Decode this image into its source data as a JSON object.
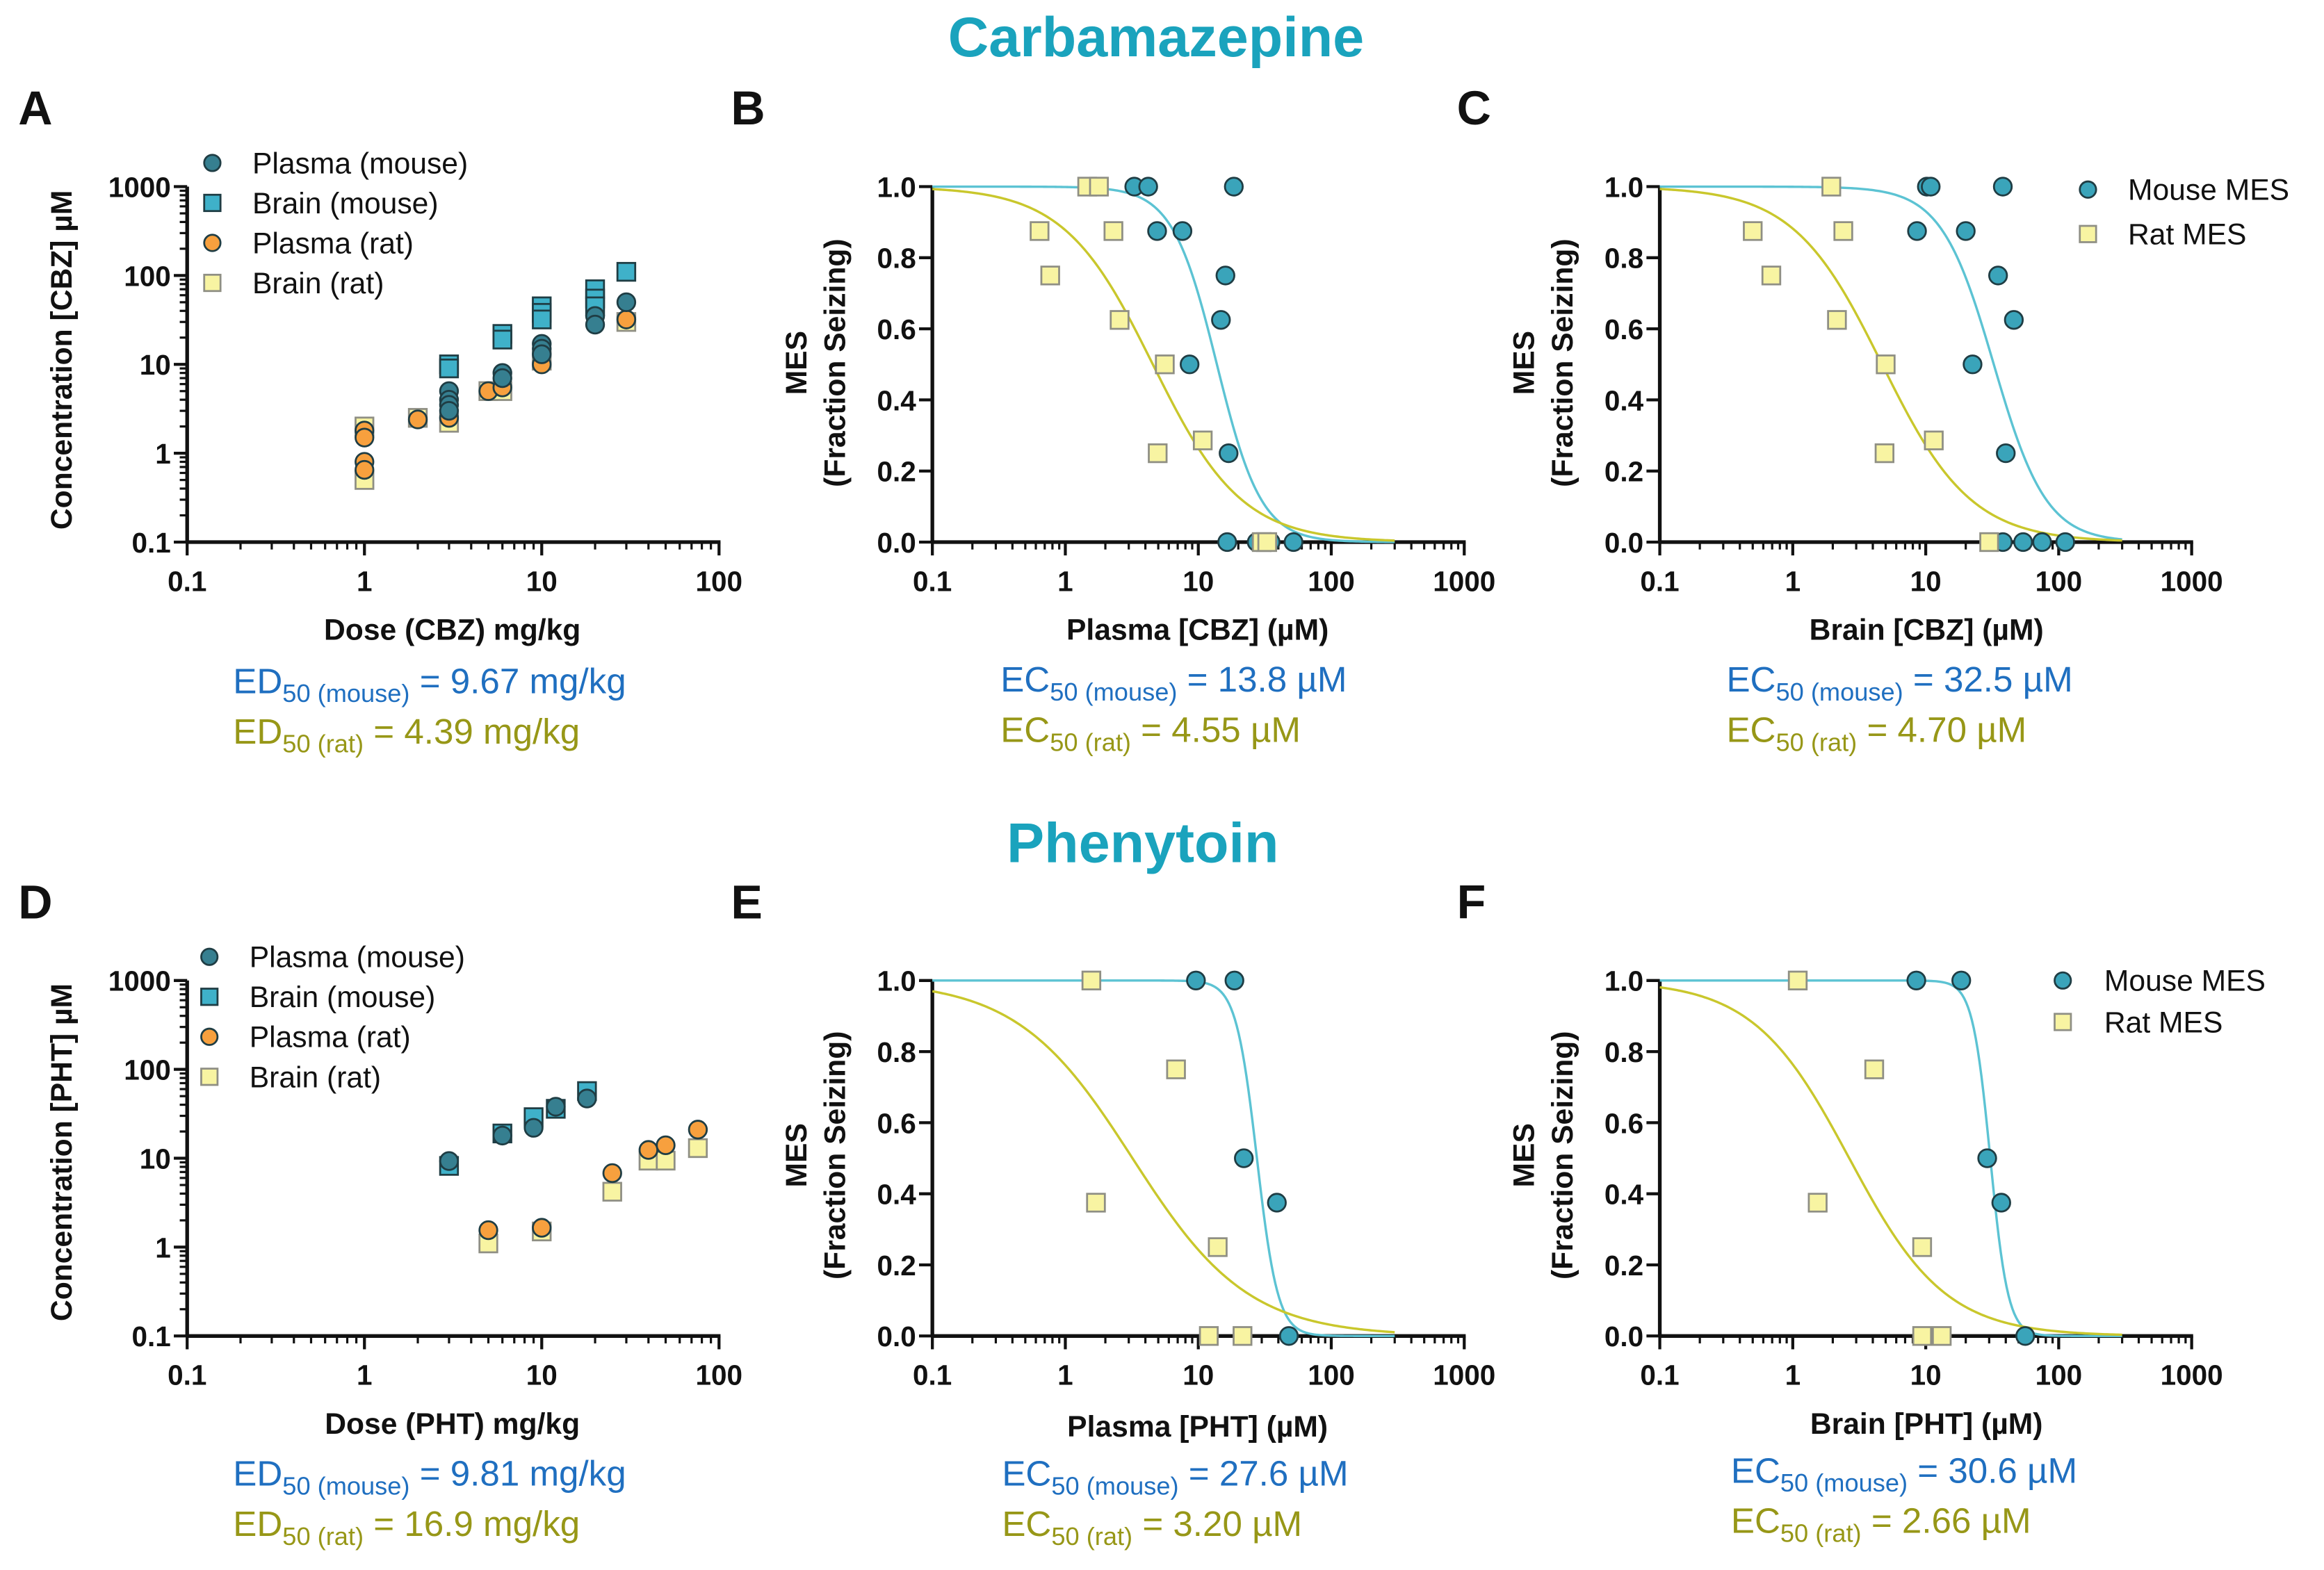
{
  "titles": {
    "top": "Carbamazepine",
    "bottom": "Phenytoin"
  },
  "colors": {
    "title": "#1aa3bd",
    "plasma_mouse": "#367f90",
    "brain_mouse": "#3fb1c9",
    "plasma_rat": "#f7a03e",
    "brain_rat": "#f8f4a2",
    "mouse_mes": "#3aa4ba",
    "rat_mes": "#f8f4a2",
    "mouse_curve": "#5cc3d3",
    "rat_curve": "#c9c72c",
    "mouse_text": "#1f6fc0",
    "rat_text": "#979717"
  },
  "chart_data": [
    {
      "panel": "A",
      "type": "scatter",
      "xlabel": "Dose (CBZ) mg/kg",
      "ylabel": [
        "Concentration [CBZ] µM"
      ],
      "xscale": "log",
      "yscale": "log",
      "xlim": [
        0.1,
        100
      ],
      "ylim": [
        0.1,
        1000
      ],
      "xticks": [
        "0.1",
        "1",
        "10",
        "100"
      ],
      "yticks": [
        "0.1",
        "1",
        "10",
        "100",
        "1000"
      ],
      "legend_placement": "top-left",
      "grid": false,
      "series": [
        {
          "name": "Plasma (mouse)",
          "marker": "circle",
          "color_key": "plasma_mouse",
          "points": [
            [
              3,
              5
            ],
            [
              3,
              4
            ],
            [
              3,
              3.5
            ],
            [
              3,
              3
            ],
            [
              6,
              8
            ],
            [
              6,
              7
            ],
            [
              10,
              17
            ],
            [
              10,
              15
            ],
            [
              10,
              13
            ],
            [
              20,
              35
            ],
            [
              20,
              28
            ],
            [
              30,
              50
            ]
          ]
        },
        {
          "name": "Brain (mouse)",
          "marker": "square",
          "color_key": "brain_mouse",
          "points": [
            [
              3,
              10
            ],
            [
              3,
              9
            ],
            [
              6,
              22
            ],
            [
              6,
              19
            ],
            [
              10,
              45
            ],
            [
              10,
              38
            ],
            [
              10,
              32
            ],
            [
              20,
              70
            ],
            [
              20,
              55
            ],
            [
              20,
              45
            ],
            [
              30,
              110
            ]
          ]
        },
        {
          "name": "Plasma (rat)",
          "marker": "circle",
          "color_key": "plasma_rat",
          "points": [
            [
              1,
              1.8
            ],
            [
              1,
              1.5
            ],
            [
              1,
              0.8
            ],
            [
              1,
              0.65
            ],
            [
              2,
              2.4
            ],
            [
              3,
              2.5
            ],
            [
              5,
              5
            ],
            [
              6,
              5.5
            ],
            [
              10,
              10
            ],
            [
              30,
              32
            ]
          ]
        },
        {
          "name": "Brain (rat)",
          "marker": "square",
          "color_key": "brain_rat",
          "points": [
            [
              1,
              2
            ],
            [
              1,
              0.5
            ],
            [
              2,
              2.5
            ],
            [
              3,
              2.2
            ],
            [
              5,
              5
            ],
            [
              6,
              5
            ],
            [
              10,
              11
            ],
            [
              30,
              30
            ]
          ]
        }
      ],
      "annotations": [
        {
          "main": "ED",
          "sub": "50 (mouse)",
          "rest": " = 9.67 mg/kg",
          "color_key": "mouse_text"
        },
        {
          "main": "ED",
          "sub": "50 (rat)",
          "rest": " = 4.39 mg/kg",
          "color_key": "rat_text"
        }
      ]
    },
    {
      "panel": "B",
      "type": "scatter",
      "xlabel": "Plasma [CBZ] (µM)",
      "ylabel": [
        "MES",
        "(Fraction Seizing)"
      ],
      "xscale": "log",
      "yscale": "linear",
      "xlim": [
        0.1,
        1000
      ],
      "ylim": [
        0,
        1
      ],
      "xticks": [
        "0.1",
        "1",
        "10",
        "100",
        "1000"
      ],
      "yticks": [
        "0.0",
        "0.2",
        "0.4",
        "0.6",
        "0.8",
        "1.0"
      ],
      "grid": false,
      "series": [
        {
          "marker": "circle",
          "color_key": "mouse_mes",
          "curve_key": "mouse_curve",
          "fit": {
            "ec50": 13.8,
            "hill_slope": 2.6
          },
          "points": [
            [
              3.3,
              1
            ],
            [
              4.2,
              1
            ],
            [
              18.5,
              1
            ],
            [
              4.9,
              0.875
            ],
            [
              7.6,
              0.875
            ],
            [
              16,
              0.75
            ],
            [
              14.8,
              0.625
            ],
            [
              8.6,
              0.5
            ],
            [
              16.9,
              0.25
            ],
            [
              16.5,
              0
            ],
            [
              27.5,
              0
            ],
            [
              35,
              0
            ],
            [
              52,
              0
            ]
          ]
        },
        {
          "marker": "square",
          "color_key": "rat_mes",
          "curve_key": "rat_curve",
          "fit": {
            "ec50": 4.55,
            "hill_slope": 1.3
          },
          "points": [
            [
              1.46,
              1
            ],
            [
              1.79,
              1
            ],
            [
              0.64,
              0.875
            ],
            [
              2.3,
              0.875
            ],
            [
              0.77,
              0.75
            ],
            [
              2.56,
              0.625
            ],
            [
              5.6,
              0.5
            ],
            [
              4.95,
              0.25
            ],
            [
              10.8,
              0.286
            ],
            [
              30,
              0
            ],
            [
              33,
              0
            ]
          ]
        }
      ],
      "annotations": [
        {
          "main": "EC",
          "sub": "50 (mouse)",
          "rest": " = 13.8 µM",
          "color_key": "mouse_text"
        },
        {
          "main": "EC",
          "sub": "50 (rat)",
          "rest": " = 4.55 µM",
          "color_key": "rat_text"
        }
      ]
    },
    {
      "panel": "C",
      "type": "scatter",
      "xlabel": "Brain [CBZ] (µM)",
      "ylabel": [
        "MES",
        "(Fraction Seizing)"
      ],
      "xscale": "log",
      "yscale": "linear",
      "xlim": [
        0.1,
        1000
      ],
      "ylim": [
        0,
        1
      ],
      "xticks": [
        "0.1",
        "1",
        "10",
        "100",
        "1000"
      ],
      "yticks": [
        "0.0",
        "0.2",
        "0.4",
        "0.6",
        "0.8",
        "1.0"
      ],
      "legend_placement": "top-right",
      "grid": false,
      "series": [
        {
          "name": "Mouse MES",
          "marker": "circle",
          "color_key": "mouse_mes",
          "curve_key": "mouse_curve",
          "fit": {
            "ec50": 32.5,
            "hill_slope": 2.2
          },
          "points": [
            [
              10.2,
              1
            ],
            [
              10.9,
              1
            ],
            [
              38,
              1
            ],
            [
              8.6,
              0.875
            ],
            [
              20,
              0.875
            ],
            [
              35,
              0.75
            ],
            [
              46,
              0.625
            ],
            [
              22.5,
              0.5
            ],
            [
              40,
              0.25
            ],
            [
              38,
              0
            ],
            [
              54,
              0
            ],
            [
              75,
              0
            ],
            [
              112,
              0
            ]
          ]
        },
        {
          "name": "Rat MES",
          "marker": "square",
          "color_key": "rat_mes",
          "curve_key": "rat_curve",
          "fit": {
            "ec50": 4.7,
            "hill_slope": 1.3
          },
          "points": [
            [
              1.95,
              1
            ],
            [
              0.5,
              0.875
            ],
            [
              2.4,
              0.875
            ],
            [
              0.69,
              0.75
            ],
            [
              2.15,
              0.625
            ],
            [
              5,
              0.5
            ],
            [
              4.9,
              0.25
            ],
            [
              11.5,
              0.286
            ],
            [
              30,
              0
            ]
          ]
        }
      ],
      "annotations": [
        {
          "main": "EC",
          "sub": "50 (mouse)",
          "rest": " = 32.5 µM",
          "color_key": "mouse_text"
        },
        {
          "main": "EC",
          "sub": "50 (rat)",
          "rest": " = 4.70 µM",
          "color_key": "rat_text"
        }
      ]
    },
    {
      "panel": "D",
      "type": "scatter",
      "xlabel": "Dose (PHT) mg/kg",
      "ylabel": [
        "Concentration [PHT] µM"
      ],
      "xscale": "log",
      "yscale": "log",
      "xlim": [
        0.1,
        100
      ],
      "ylim": [
        0.1,
        1000
      ],
      "xticks": [
        "0.1",
        "1",
        "10",
        "100"
      ],
      "yticks": [
        "0.1",
        "1",
        "10",
        "100",
        "1000"
      ],
      "legend_placement": "top-left",
      "grid": false,
      "series": [
        {
          "name": "Plasma (mouse)",
          "marker": "circle",
          "color_key": "plasma_mouse",
          "points": [
            [
              3,
              9.3
            ],
            [
              6,
              18
            ],
            [
              9,
              22
            ],
            [
              12,
              38
            ],
            [
              18,
              47
            ]
          ]
        },
        {
          "name": "Brain (mouse)",
          "marker": "square",
          "color_key": "brain_mouse",
          "points": [
            [
              3,
              8.2
            ],
            [
              6,
              19
            ],
            [
              9,
              29
            ],
            [
              12,
              36
            ],
            [
              18,
              57
            ]
          ]
        },
        {
          "name": "Plasma (rat)",
          "marker": "circle",
          "color_key": "plasma_rat",
          "points": [
            [
              5,
              1.55
            ],
            [
              10,
              1.65
            ],
            [
              25,
              6.8
            ],
            [
              40,
              12.4
            ],
            [
              50,
              14
            ],
            [
              76,
              21
            ]
          ]
        },
        {
          "name": "Brain (rat)",
          "marker": "square",
          "color_key": "brain_rat",
          "points": [
            [
              5,
              1.1
            ],
            [
              10,
              1.5
            ],
            [
              25,
              4.2
            ],
            [
              40,
              9.4
            ],
            [
              50,
              9.4
            ],
            [
              76,
              13
            ]
          ]
        }
      ],
      "annotations": [
        {
          "main": "ED",
          "sub": "50 (mouse)",
          "rest": " = 9.81 mg/kg",
          "color_key": "mouse_text"
        },
        {
          "main": "ED",
          "sub": "50 (rat)",
          "rest": " = 16.9 mg/kg",
          "color_key": "rat_text"
        }
      ]
    },
    {
      "panel": "E",
      "type": "scatter",
      "xlabel": "Plasma [PHT] (µM)",
      "ylabel": [
        "MES",
        "(Fraction Seizing)"
      ],
      "xscale": "log",
      "yscale": "linear",
      "xlim": [
        0.1,
        1000
      ],
      "ylim": [
        0,
        1
      ],
      "xticks": [
        "0.1",
        "1",
        "10",
        "100",
        "1000"
      ],
      "yticks": [
        "0.0",
        "0.2",
        "0.4",
        "0.6",
        "0.8",
        "1.0"
      ],
      "grid": false,
      "series": [
        {
          "marker": "circle",
          "color_key": "mouse_mes",
          "curve_key": "mouse_curve",
          "fit": {
            "ec50": 27.6,
            "hill_slope": 5.5
          },
          "points": [
            [
              9.6,
              1
            ],
            [
              18.7,
              1
            ],
            [
              22,
              0.5
            ],
            [
              39,
              0.375
            ],
            [
              48,
              0
            ]
          ]
        },
        {
          "marker": "square",
          "color_key": "rat_mes",
          "curve_key": "rat_curve",
          "fit": {
            "ec50": 3.2,
            "hill_slope": 1.0
          },
          "points": [
            [
              1.57,
              1
            ],
            [
              6.8,
              0.75
            ],
            [
              1.7,
              0.375
            ],
            [
              14,
              0.25
            ],
            [
              12,
              0
            ],
            [
              21.5,
              0
            ]
          ]
        }
      ],
      "annotations": [
        {
          "main": "EC",
          "sub": "50 (mouse)",
          "rest": " = 27.6 µM",
          "color_key": "mouse_text"
        },
        {
          "main": "EC",
          "sub": "50 (rat)",
          "rest": " = 3.20 µM",
          "color_key": "rat_text"
        }
      ]
    },
    {
      "panel": "F",
      "type": "scatter",
      "xlabel": "Brain [PHT] (µM)",
      "ylabel": [
        "MES",
        "(Fraction Seizing)"
      ],
      "xscale": "log",
      "yscale": "linear",
      "xlim": [
        0.1,
        1000
      ],
      "ylim": [
        0,
        1
      ],
      "xticks": [
        "0.1",
        "1",
        "10",
        "100",
        "1000"
      ],
      "yticks": [
        "0.0",
        "0.2",
        "0.4",
        "0.6",
        "0.8",
        "1.0"
      ],
      "legend_placement": "top-right",
      "grid": false,
      "series": [
        {
          "name": "Mouse MES",
          "marker": "circle",
          "color_key": "mouse_mes",
          "curve_key": "mouse_curve",
          "fit": {
            "ec50": 30.6,
            "hill_slope": 6.5
          },
          "points": [
            [
              8.5,
              1
            ],
            [
              18.5,
              1
            ],
            [
              29,
              0.5
            ],
            [
              37,
              0.375
            ],
            [
              56,
              0
            ]
          ]
        },
        {
          "name": "Rat MES",
          "marker": "square",
          "color_key": "rat_mes",
          "curve_key": "rat_curve",
          "fit": {
            "ec50": 2.66,
            "hill_slope": 1.2
          },
          "points": [
            [
              1.09,
              1
            ],
            [
              4.1,
              0.75
            ],
            [
              1.54,
              0.375
            ],
            [
              9.4,
              0.25
            ],
            [
              9.4,
              0
            ],
            [
              13.2,
              0
            ]
          ]
        }
      ],
      "annotations": [
        {
          "main": "EC",
          "sub": "50 (mouse)",
          "rest": " = 30.6 µM",
          "color_key": "mouse_text"
        },
        {
          "main": "EC",
          "sub": "50 (rat)",
          "rest": " = 2.66 µM",
          "color_key": "rat_text"
        }
      ]
    }
  ]
}
